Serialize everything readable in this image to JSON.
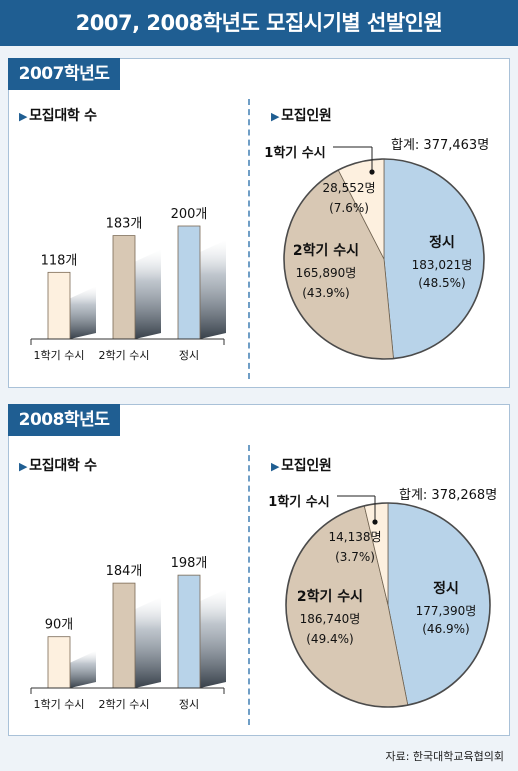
{
  "title": "2007, 2008학년도 모집시기별 선발인원",
  "source": "자료: 한국대학교육협의회",
  "colors": {
    "early1": "#fdf0df",
    "early2": "#d8c8b4",
    "regular": "#b8d3e9",
    "header": "#1f5e92",
    "accent": "#1f5e92"
  },
  "chart_data": [
    {
      "type": "bar",
      "panel": "2007학년도",
      "title": "모집대학 수",
      "categories": [
        "1학기 수시",
        "2학기 수시",
        "정시"
      ],
      "values": [
        118,
        183,
        200
      ],
      "value_labels": [
        "118개",
        "183개",
        "200개"
      ]
    },
    {
      "type": "pie",
      "panel": "2007학년도",
      "title": "모집인원",
      "total_label": "합계: 377,463명",
      "slices": [
        {
          "name": "정시",
          "value": 183021,
          "value_label": "183,021명",
          "pct_label": "(48.5%)"
        },
        {
          "name": "2학기 수시",
          "value": 165890,
          "value_label": "165,890명",
          "pct_label": "(43.9%)"
        },
        {
          "name": "1학기 수시",
          "value": 28552,
          "value_label": "28,552명",
          "pct_label": "(7.6%)"
        }
      ]
    },
    {
      "type": "bar",
      "panel": "2008학년도",
      "title": "모집대학 수",
      "categories": [
        "1학기 수시",
        "2학기 수시",
        "정시"
      ],
      "values": [
        90,
        184,
        198
      ],
      "value_labels": [
        "90개",
        "184개",
        "198개"
      ]
    },
    {
      "type": "pie",
      "panel": "2008학년도",
      "title": "모집인원",
      "total_label": "합계: 378,268명",
      "slices": [
        {
          "name": "정시",
          "value": 177390,
          "value_label": "177,390명",
          "pct_label": "(46.9%)"
        },
        {
          "name": "2학기 수시",
          "value": 186740,
          "value_label": "186,740명",
          "pct_label": "(49.4%)"
        },
        {
          "name": "1학기 수시",
          "value": 14138,
          "value_label": "14,138명",
          "pct_label": "(3.7%)"
        }
      ]
    }
  ]
}
